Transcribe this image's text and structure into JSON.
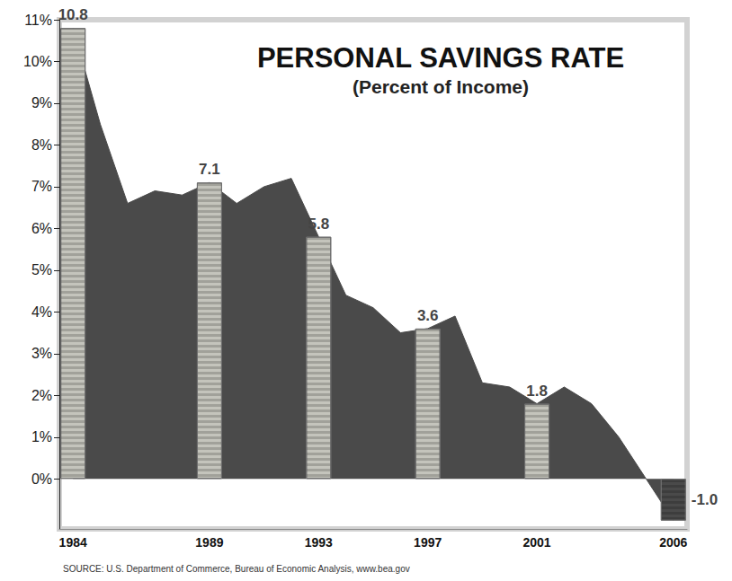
{
  "chart_data": {
    "type": "line",
    "title": "PERSONAL SAVINGS RATE",
    "subtitle": "(Percent of Income)",
    "source": "SOURCE: U.S. Department of Commerce, Bureau of Economic Analysis, www.bea.gov",
    "categories": [
      "1984",
      null,
      null,
      null,
      null,
      "1989",
      null,
      null,
      null,
      "1993",
      null,
      null,
      null,
      "1997",
      null,
      null,
      null,
      "2001",
      null,
      null,
      null,
      null,
      "2006"
    ],
    "series": [
      {
        "type": "line",
        "color": "#4a4a4a",
        "values": [
          10.8,
          8.5,
          6.6,
          6.9,
          6.8,
          7.1,
          6.6,
          7.0,
          7.2,
          5.8,
          4.4,
          4.1,
          3.5,
          3.6,
          3.9,
          2.3,
          2.2,
          1.8,
          2.2,
          1.8,
          1.0,
          0.0,
          -1.0
        ]
      },
      {
        "type": "bar",
        "data_labels": true,
        "colors": [
          "#c4c4bc",
          null,
          null,
          null,
          null,
          "#c4c4bc",
          null,
          null,
          null,
          "#c4c4bc",
          null,
          null,
          null,
          "#c4c4bc",
          null,
          null,
          null,
          "#c4c4bc",
          null,
          null,
          null,
          null,
          "#4a4a4a"
        ],
        "values": [
          10.8,
          null,
          null,
          null,
          null,
          7.1,
          null,
          null,
          null,
          5.8,
          null,
          null,
          null,
          3.6,
          null,
          null,
          null,
          1.8,
          null,
          null,
          null,
          null,
          -1.0
        ],
        "value_labels": [
          "10.8",
          null,
          null,
          null,
          null,
          "7.1",
          null,
          null,
          null,
          "5.8",
          null,
          null,
          null,
          "3.6",
          null,
          null,
          null,
          "1.8",
          null,
          null,
          null,
          null,
          "-1.0"
        ]
      }
    ],
    "ylim": [
      -1.2,
      11
    ],
    "yticks": [
      {
        "value": 0,
        "label": "0%"
      },
      {
        "value": 1,
        "label": "1%"
      },
      {
        "value": 2,
        "label": "2%"
      },
      {
        "value": 3,
        "label": "3%"
      },
      {
        "value": 4,
        "label": "4%"
      },
      {
        "value": 5,
        "label": "5%"
      },
      {
        "value": 6,
        "label": "6%"
      },
      {
        "value": 7,
        "label": "7%"
      },
      {
        "value": 8,
        "label": "8%"
      },
      {
        "value": 9,
        "label": "9%"
      },
      {
        "value": 10,
        "label": "10%"
      },
      {
        "value": 11,
        "label": "11%"
      }
    ],
    "grid": false
  }
}
